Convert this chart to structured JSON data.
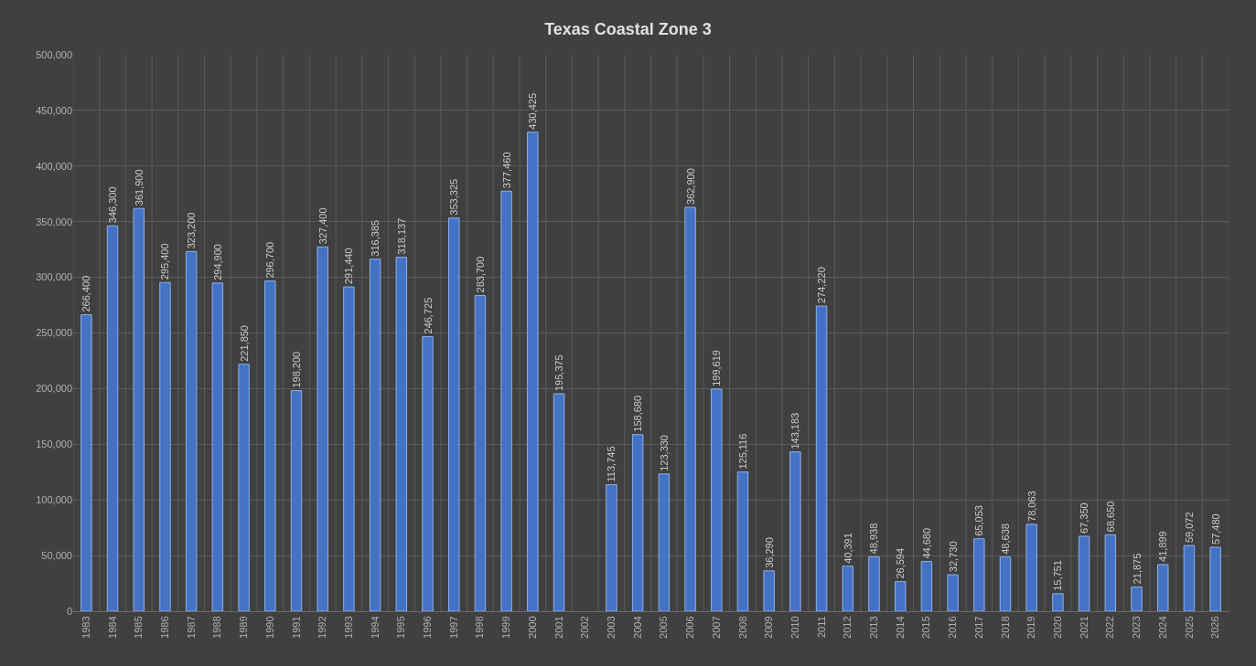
{
  "chart_data": {
    "type": "bar",
    "title": "Texas Coastal Zone 3",
    "categories": [
      "1983",
      "1984",
      "1985",
      "1986",
      "1987",
      "1988",
      "1989",
      "1990",
      "1991",
      "1992",
      "1993",
      "1994",
      "1995",
      "1996",
      "1997",
      "1998",
      "1999",
      "2000",
      "2001",
      "2002",
      "2003",
      "2004",
      "2005",
      "2006",
      "2007",
      "2008",
      "2009",
      "2010",
      "2011",
      "2012",
      "2013",
      "2014",
      "2015",
      "2016",
      "2017",
      "2018",
      "2019",
      "2020",
      "2021",
      "2022",
      "2023",
      "2024",
      "2025",
      "2026"
    ],
    "values": [
      266400,
      346300,
      361900,
      295400,
      323200,
      294900,
      221850,
      296700,
      198200,
      327400,
      291440,
      316385,
      318137,
      246725,
      353325,
      283700,
      377460,
      430425,
      195375,
      null,
      113745,
      158680,
      123330,
      362900,
      199619,
      125116,
      36290,
      143183,
      274220,
      40391,
      48938,
      26594,
      44680,
      32730,
      65053,
      48638,
      78063,
      15751,
      67350,
      68650,
      21875,
      41899,
      59072,
      57480
    ],
    "color": "#4472c4",
    "ylim": [
      0,
      500000
    ],
    "yticks": [
      {
        "value": 0,
        "label": "0"
      },
      {
        "value": 50000,
        "label": "50,000"
      },
      {
        "value": 100000,
        "label": "100,000"
      },
      {
        "value": 150000,
        "label": "150,000"
      },
      {
        "value": 200000,
        "label": "200,000"
      },
      {
        "value": 250000,
        "label": "250,000"
      },
      {
        "value": 300000,
        "label": "300,000"
      },
      {
        "value": 350000,
        "label": "350,000"
      },
      {
        "value": 400000,
        "label": "400,000"
      },
      {
        "value": 450000,
        "label": "450,000"
      },
      {
        "value": 500000,
        "label": "500,000"
      }
    ],
    "grid": true,
    "value_labels": [
      "266,400",
      "346,300",
      "361,900",
      "295,400",
      "323,200",
      "294,900",
      "221,850",
      "296,700",
      "198,200",
      "327,400",
      "291,440",
      "316,385",
      "318,137",
      "246,725",
      "353,325",
      "283,700",
      "377,460",
      "430,425",
      "195,375",
      null,
      "113,745",
      "158,680",
      "123,330",
      "362,900",
      "199,619",
      "125,116",
      "36,290",
      "143,183",
      "274,220",
      "40,391",
      "48,938",
      "26,594",
      "44,680",
      "32,730",
      "65,053",
      "48,638",
      "78,063",
      "15,751",
      "67,350",
      "68,650",
      "21,875",
      "41,899",
      "59,072",
      "57,480"
    ]
  }
}
